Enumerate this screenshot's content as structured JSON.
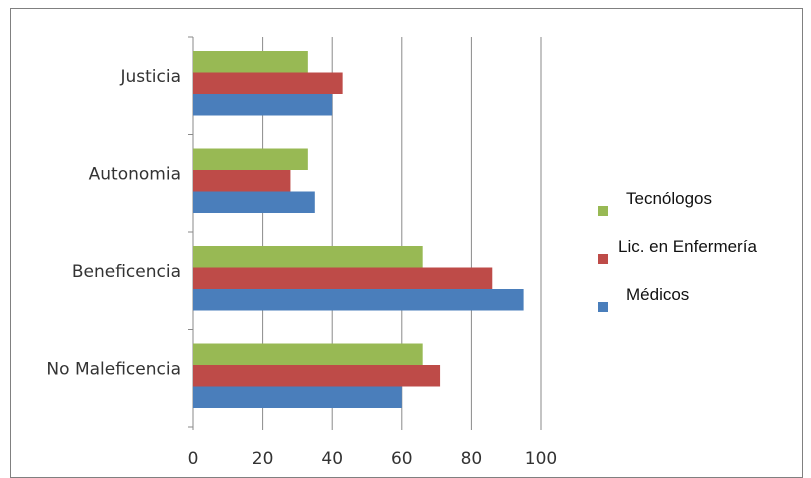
{
  "chart_data": {
    "type": "bar",
    "orientation": "horizontal",
    "categories": [
      "No Maleficencia",
      "Beneficencia",
      "Autonomia",
      "Justicia"
    ],
    "series": [
      {
        "name": "Médicos",
        "color": "#4a7ebb",
        "values": [
          60,
          95,
          35,
          40
        ]
      },
      {
        "name": "Lic. en Enfermería",
        "color": "#be4b48",
        "values": [
          71,
          86,
          28,
          43
        ]
      },
      {
        "name": "Tecnólogos",
        "color": "#98b954",
        "values": [
          66,
          66,
          33,
          33
        ]
      }
    ],
    "legend_order": [
      "Tecnólogos",
      "Lic. en Enfermería",
      "Médicos"
    ],
    "xlim": [
      0,
      100
    ],
    "xticks": [
      0,
      20,
      40,
      60,
      80,
      100
    ],
    "grid": true,
    "legend_position": "right",
    "title": "",
    "xlabel": "",
    "ylabel": ""
  }
}
